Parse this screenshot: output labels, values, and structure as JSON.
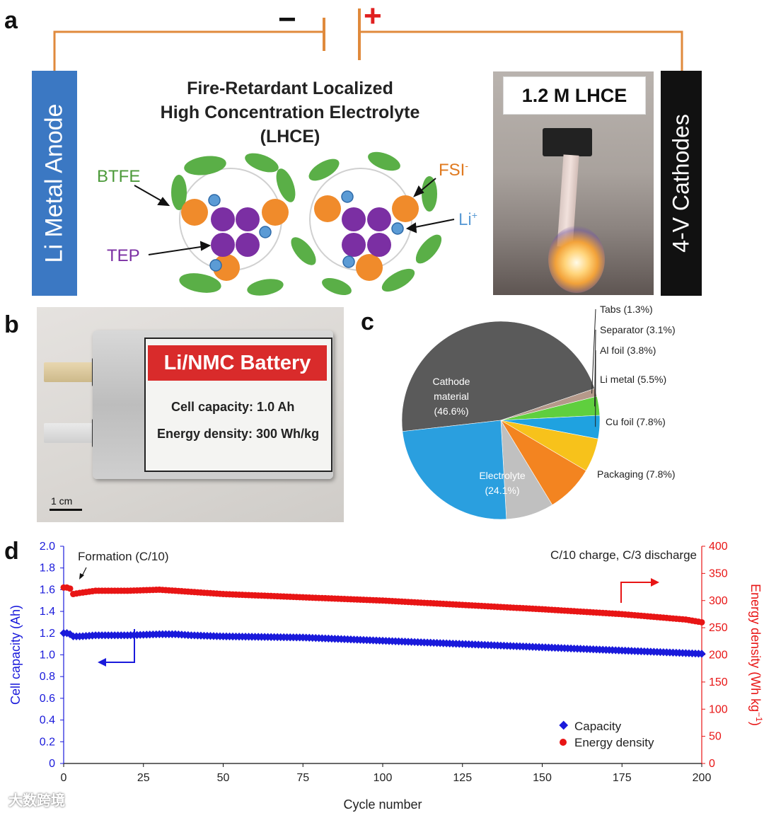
{
  "panels": {
    "a": "a",
    "b": "b",
    "c": "c",
    "d": "d"
  },
  "panel_a": {
    "minus": "−",
    "plus": "+",
    "anode_label": "Li Metal Anode",
    "cathode_label": "4-V Cathodes",
    "title_line1": "Fire-Retardant Localized",
    "title_line2": "High Concentration Electrolyte",
    "title_line3": "(LHCE)",
    "btfe": "BTFE",
    "tep": "TEP",
    "fsi": "FSI",
    "fsi_sup": "-",
    "li": "Li",
    "li_sup": "+",
    "photo_label": "1.2 M LHCE",
    "colors": {
      "btfe": "#5aaf47",
      "tep": "#7b2fa3",
      "fsi": "#f08b2b",
      "li": "#5b9bd5",
      "wire": "#e08a3c",
      "plus": "#e02020"
    }
  },
  "panel_b": {
    "battery_title": "Li/NMC Battery",
    "capacity": "Cell capacity: 1.0 Ah",
    "energy": "Energy density: 300 Wh/kg",
    "scale": "1 cm"
  },
  "chart_data": [
    {
      "type": "pie",
      "panel": "c",
      "slices": [
        {
          "label": "Cathode material",
          "value": 46.6,
          "value_text": "(46.6%)",
          "color": "#5a5a5a"
        },
        {
          "label": "Tabs",
          "value": 1.3,
          "value_text": "Tabs (1.3%)",
          "color": "#b5998a"
        },
        {
          "label": "Separator",
          "value": 3.1,
          "value_text": "Separator (3.1%)",
          "color": "#5fcf3e"
        },
        {
          "label": "Al foil",
          "value": 3.8,
          "value_text": "Al foil (3.8%)",
          "color": "#1fa2e0"
        },
        {
          "label": "Li metal",
          "value": 5.5,
          "value_text": "Li metal (5.5%)",
          "color": "#f7c21b"
        },
        {
          "label": "Cu foil",
          "value": 7.8,
          "value_text": "Cu foil (7.8%)",
          "color": "#f38420"
        },
        {
          "label": "Packaging",
          "value": 7.8,
          "value_text": "Packaging (7.8%)",
          "color": "#c0c0c0"
        },
        {
          "label": "Electrolyte",
          "value": 24.1,
          "value_text": "(24.1%)",
          "color": "#2a9fdf"
        }
      ],
      "inside_labels": {
        "cathode_1": "Cathode",
        "cathode_2": "material",
        "electrolyte": "Electrolyte"
      }
    },
    {
      "type": "scatter",
      "panel": "d",
      "xlabel": "Cycle number",
      "ylabel_left": "Cell capacity (Ah)",
      "ylabel_right": "Energy density (Wh kg",
      "ylabel_right_sup": "−1",
      "ylabel_right_close": ")",
      "xlim": [
        0,
        200
      ],
      "ylim_left": [
        0,
        2.0
      ],
      "ylim_right": [
        0,
        400
      ],
      "xticks": [
        0,
        25,
        50,
        75,
        100,
        125,
        150,
        175,
        200
      ],
      "yticks_left": [
        "0",
        "0.2",
        "0.4",
        "0.6",
        "0.8",
        "1.0",
        "1.2",
        "1.4",
        "1.6",
        "1.8",
        "2.0"
      ],
      "yticks_right": [
        "0",
        "50",
        "100",
        "150",
        "200",
        "250",
        "300",
        "350",
        "400"
      ],
      "annotation_formation": "Formation (C/10)",
      "annotation_protocol": "C/10 charge, C/3 discharge",
      "series": [
        {
          "name": "Capacity",
          "axis": "left",
          "color": "#1a1adb",
          "points": [
            [
              0,
              1.2
            ],
            [
              1,
              1.2
            ],
            [
              2,
              1.19
            ],
            [
              3,
              1.17
            ],
            [
              5,
              1.17
            ],
            [
              10,
              1.18
            ],
            [
              20,
              1.18
            ],
            [
              30,
              1.19
            ],
            [
              35,
              1.19
            ],
            [
              40,
              1.18
            ],
            [
              50,
              1.17
            ],
            [
              75,
              1.16
            ],
            [
              100,
              1.13
            ],
            [
              125,
              1.1
            ],
            [
              150,
              1.07
            ],
            [
              175,
              1.04
            ],
            [
              200,
              1.01
            ]
          ]
        },
        {
          "name": "Energy density",
          "axis": "right",
          "color": "#e81515",
          "points": [
            [
              0,
              324
            ],
            [
              1,
              324
            ],
            [
              2,
              322
            ],
            [
              3,
              312
            ],
            [
              5,
              314
            ],
            [
              10,
              318
            ],
            [
              20,
              318
            ],
            [
              30,
              320
            ],
            [
              40,
              316
            ],
            [
              50,
              312
            ],
            [
              75,
              306
            ],
            [
              100,
              300
            ],
            [
              125,
              292
            ],
            [
              150,
              284
            ],
            [
              175,
              275
            ],
            [
              195,
              265
            ],
            [
              200,
              260
            ]
          ]
        }
      ],
      "legend": [
        "Capacity",
        "Energy density"
      ]
    }
  ],
  "watermark": "大数跨境"
}
